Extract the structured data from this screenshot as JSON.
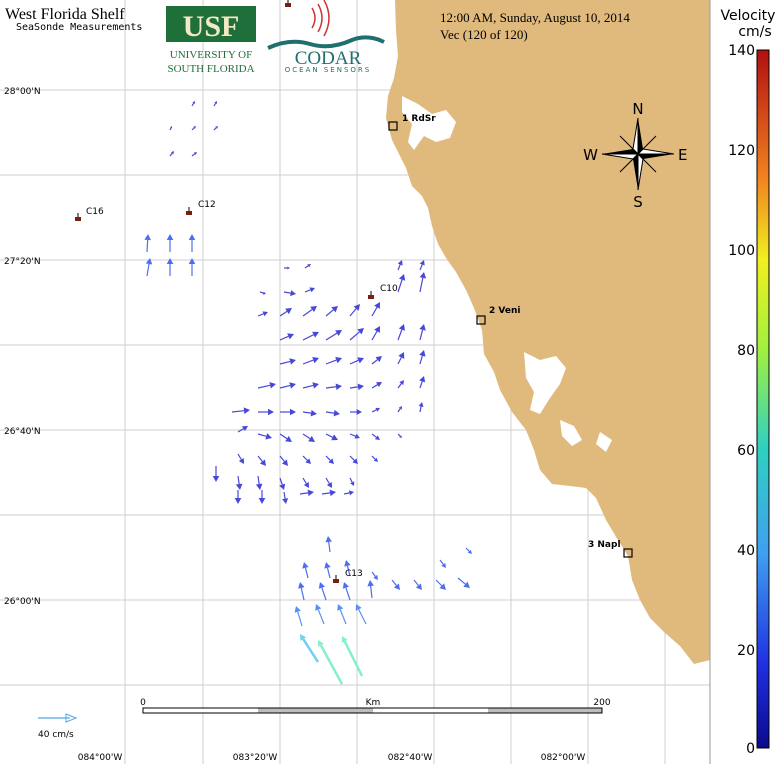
{
  "header": {
    "title": "West Florida Shelf",
    "subtitle": "SeaSonde Measurements",
    "timestamp": "12:00 AM, Sunday, August 10, 2014",
    "vector_count": "Vec (120 of 120)"
  },
  "logos": {
    "usf_mark": "USF",
    "usf_line1": "UNIVERSITY OF",
    "usf_line2": "SOUTH FLORIDA",
    "codar_mark": "CODAR",
    "codar_sub": "OCEAN SENSORS"
  },
  "compass": {
    "n": "N",
    "s": "S",
    "e": "E",
    "w": "W"
  },
  "latitudes": [
    "28°00'N",
    "27°20'N",
    "26°40'N",
    "26°00'N"
  ],
  "longitudes": [
    "084°00'W",
    "083°20'W",
    "082°40'W",
    "082°00'W"
  ],
  "stations": [
    {
      "label": "1 RdSr"
    },
    {
      "label": "2 Veni"
    },
    {
      "label": "3 Napl"
    }
  ],
  "buoys": [
    {
      "label": "C16"
    },
    {
      "label": "C12"
    },
    {
      "label": "C10"
    },
    {
      "label": "C13"
    }
  ],
  "scale_bar": {
    "start": "0",
    "unit": "Km",
    "end": "200"
  },
  "reference_vector": {
    "label": "40 cm/s"
  },
  "colorbar": {
    "title_line1": "Velocity",
    "title_line2": "cm/s",
    "ticks": [
      "140",
      "120",
      "100",
      "80",
      "60",
      "40",
      "20",
      "0"
    ]
  },
  "colors": {
    "land": "#e0b97d",
    "grid": "#cccccc",
    "usf_green": "#1f6f3a",
    "codar_teal": "#2b8c8c",
    "vector_blue": "#3f4de0"
  }
}
